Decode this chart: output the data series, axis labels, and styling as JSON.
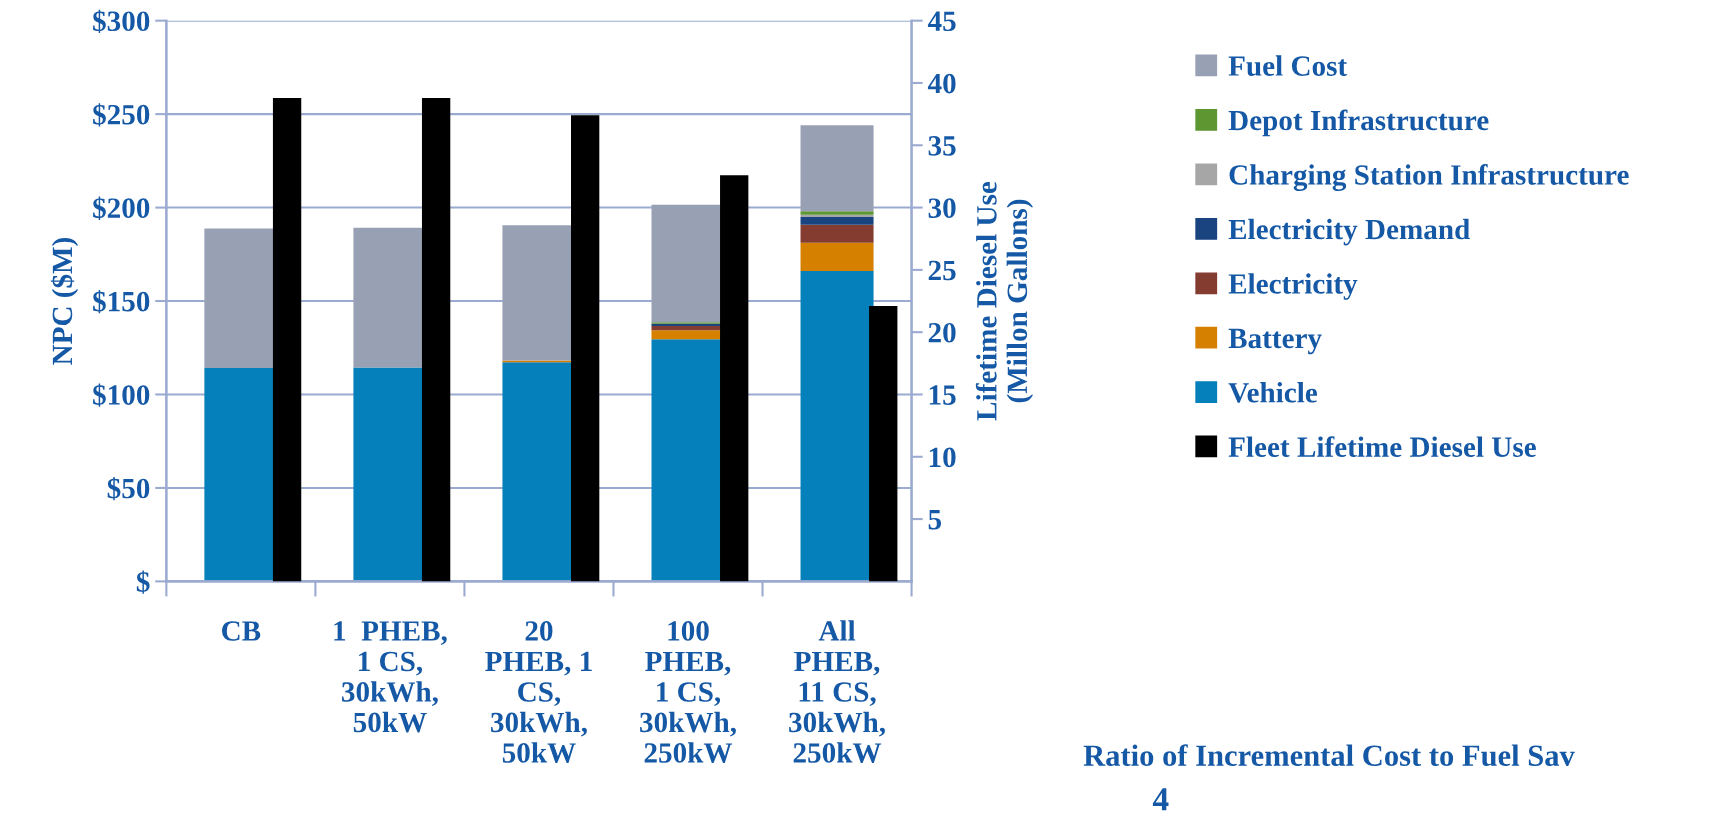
{
  "chart_data": {
    "type": "bar",
    "stacked": true,
    "categories": [
      "CB",
      "1  PHEB,\n1 CS,\n30kWh,\n50kW",
      "20\nPHEB, 1\nCS,\n30kWh,\n50kW",
      "100\nPHEB,\n1 CS,\n30kWh,\n250kW",
      "All\nPHEB,\n11 CS,\n30kWh,\n250kW"
    ],
    "ylabel": "NPC ($M)",
    "y2label": "Lifetime Diesel Use\n(Millon Gallons)",
    "ylim": [
      0,
      300
    ],
    "yticks": [
      {
        "value": 0,
        "label": "$"
      },
      {
        "value": 50,
        "label": "$50"
      },
      {
        "value": 100,
        "label": "$100"
      },
      {
        "value": 150,
        "label": "$150"
      },
      {
        "value": 200,
        "label": "$200"
      },
      {
        "value": 250,
        "label": "$250"
      },
      {
        "value": 300,
        "label": "$300"
      }
    ],
    "y2lim": [
      0,
      45
    ],
    "y2ticks": [
      5,
      10,
      15,
      20,
      25,
      30,
      35,
      40,
      45
    ],
    "grid": "y",
    "legend": "right",
    "series": [
      {
        "name": "Vehicle",
        "color": "#0580bb",
        "values": [
          114.2,
          114.5,
          117.2,
          129.6,
          166.0
        ]
      },
      {
        "name": "Battery",
        "color": "#d68000",
        "values": [
          0,
          0,
          1.0,
          4.7,
          15.2
        ]
      },
      {
        "name": "Electricity",
        "color": "#843c30",
        "values": [
          0,
          0,
          0,
          2.3,
          9.6
        ]
      },
      {
        "name": "Electricity Demand",
        "color": "#1a4480",
        "values": [
          0,
          0,
          0,
          1.2,
          4.1
        ]
      },
      {
        "name": "Charging Station Infrastructure",
        "color": "#a6a6a6",
        "values": [
          0,
          null,
          null,
          null,
          1.2
        ]
      },
      {
        "name": "Depot Infrastructure",
        "color": "#5e9732",
        "values": [
          0,
          0,
          0,
          0.8,
          2.0
        ]
      },
      {
        "name": "Fuel Cost",
        "color": "#98a0b4",
        "values": [
          74.6,
          74.7,
          72.4,
          62.9,
          46.0
        ]
      },
      {
        "name": "Fleet Lifetime Diesel Use",
        "color": "#000000",
        "axis": "y2",
        "values": [
          38.8,
          38.8,
          37.4,
          32.6,
          22.1
        ]
      }
    ],
    "annotations": [
      "Ratio of Incremental Cost to Fuel Sav",
      "4"
    ]
  }
}
